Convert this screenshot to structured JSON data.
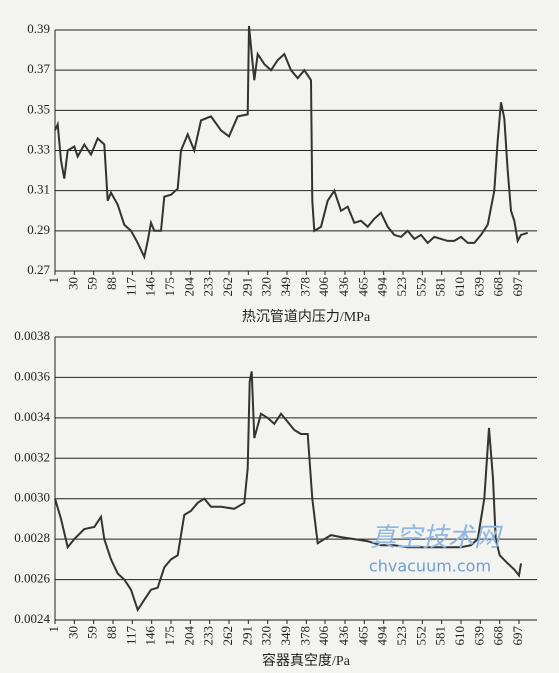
{
  "chart_data": [
    {
      "type": "line",
      "x_label": "热沉管道内压力/MPa",
      "xlim": [
        1,
        724
      ],
      "xticks": [
        1,
        30,
        59,
        88,
        117,
        146,
        175,
        204,
        233,
        262,
        291,
        320,
        349,
        378,
        406,
        436,
        465,
        494,
        523,
        552,
        581,
        610,
        639,
        668,
        697
      ],
      "ylim": [
        0.27,
        0.39
      ],
      "yticks": [
        0.27,
        0.29,
        0.31,
        0.33,
        0.35,
        0.37,
        0.39
      ],
      "grid": true,
      "series": [
        {
          "color": "#333333",
          "x": [
            1,
            5,
            10,
            15,
            20,
            30,
            35,
            45,
            55,
            65,
            75,
            80,
            85,
            95,
            105,
            115,
            125,
            135,
            140,
            145,
            150,
            160,
            165,
            175,
            185,
            190,
            200,
            210,
            220,
            235,
            250,
            262,
            275,
            290,
            292,
            297,
            300,
            305,
            315,
            325,
            335,
            345,
            355,
            365,
            375,
            385,
            387,
            390,
            400,
            410,
            420,
            430,
            440,
            450,
            460,
            470,
            480,
            490,
            500,
            510,
            520,
            530,
            540,
            550,
            560,
            570,
            580,
            590,
            600,
            610,
            620,
            630,
            640,
            650,
            660,
            665,
            670,
            675,
            680,
            685,
            690,
            695,
            700,
            710
          ],
          "values": [
            0.34,
            0.343,
            0.325,
            0.316,
            0.33,
            0.332,
            0.327,
            0.333,
            0.328,
            0.336,
            0.333,
            0.305,
            0.309,
            0.303,
            0.293,
            0.29,
            0.284,
            0.277,
            0.285,
            0.294,
            0.29,
            0.29,
            0.307,
            0.308,
            0.311,
            0.33,
            0.338,
            0.33,
            0.345,
            0.347,
            0.34,
            0.337,
            0.347,
            0.348,
            0.392,
            0.375,
            0.365,
            0.378,
            0.373,
            0.37,
            0.375,
            0.378,
            0.37,
            0.366,
            0.37,
            0.365,
            0.305,
            0.29,
            0.292,
            0.305,
            0.31,
            0.3,
            0.302,
            0.294,
            0.295,
            0.292,
            0.296,
            0.299,
            0.292,
            0.288,
            0.287,
            0.29,
            0.286,
            0.288,
            0.284,
            0.287,
            0.286,
            0.285,
            0.285,
            0.287,
            0.284,
            0.284,
            0.288,
            0.293,
            0.31,
            0.335,
            0.354,
            0.346,
            0.32,
            0.3,
            0.295,
            0.285,
            0.288,
            0.289
          ]
        }
      ]
    },
    {
      "type": "line",
      "x_label": "容器真空度/Pa",
      "xlim": [
        1,
        724
      ],
      "xticks": [
        1,
        30,
        59,
        88,
        117,
        146,
        175,
        204,
        233,
        262,
        291,
        320,
        349,
        378,
        406,
        436,
        465,
        494,
        523,
        552,
        581,
        610,
        639,
        668,
        697
      ],
      "ylim": [
        0.0024,
        0.0038
      ],
      "yticks": [
        0.0024,
        0.0026,
        0.0028,
        {
          "value": 0.003,
          "label": "0.0030"
        },
        0.0032,
        0.0034,
        0.0036,
        0.0038
      ],
      "grid": true,
      "annotations": [
        "真空技术网",
        "chvacuum.com"
      ],
      "series": [
        {
          "color": "#333333",
          "x": [
            1,
            10,
            20,
            30,
            45,
            60,
            70,
            75,
            85,
            95,
            105,
            115,
            125,
            135,
            145,
            155,
            165,
            175,
            185,
            195,
            205,
            215,
            225,
            235,
            250,
            270,
            285,
            290,
            293,
            296,
            300,
            310,
            320,
            330,
            340,
            350,
            360,
            370,
            380,
            387,
            395,
            405,
            415,
            430,
            450,
            470,
            490,
            510,
            530,
            550,
            570,
            590,
            610,
            625,
            635,
            645,
            652,
            658,
            662,
            668,
            680,
            690,
            697,
            700
          ],
          "values": [
            0.003,
            0.0029,
            0.00276,
            0.0028,
            0.00285,
            0.00286,
            0.00291,
            0.0028,
            0.0027,
            0.00263,
            0.0026,
            0.00255,
            0.00245,
            0.0025,
            0.00255,
            0.00256,
            0.00266,
            0.0027,
            0.00272,
            0.00292,
            0.00294,
            0.00298,
            0.003,
            0.00296,
            0.00296,
            0.00295,
            0.00298,
            0.00315,
            0.00358,
            0.00363,
            0.0033,
            0.00342,
            0.0034,
            0.00337,
            0.00342,
            0.00338,
            0.00334,
            0.00332,
            0.00332,
            0.003,
            0.00278,
            0.0028,
            0.00282,
            0.00281,
            0.0028,
            0.00279,
            0.00277,
            0.00277,
            0.00276,
            0.00276,
            0.00276,
            0.00276,
            0.00276,
            0.00277,
            0.0028,
            0.003,
            0.00335,
            0.0031,
            0.0028,
            0.00272,
            0.00268,
            0.00265,
            0.00262,
            0.00268
          ]
        }
      ]
    }
  ]
}
